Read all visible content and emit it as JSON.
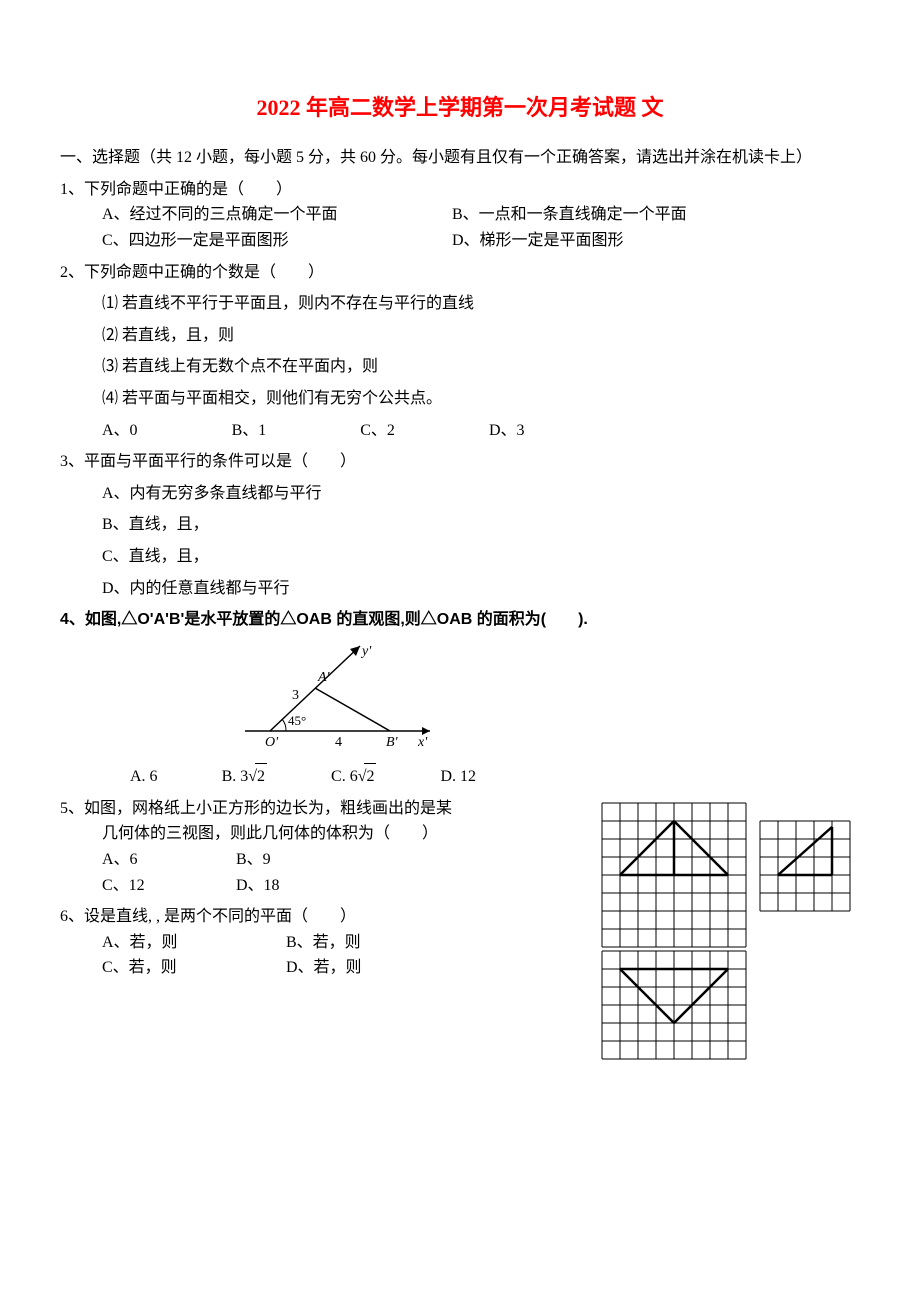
{
  "title": "2022 年高二数学上学期第一次月考试题 文",
  "section_header": "一、选择题（共 12 小题，每小题 5 分，共 60 分。每小题有且仅有一个正确答案，请选出并涂在机读卡上）",
  "q1": {
    "stem": "1、下列命题中正确的是（　　）",
    "optA": "A、经过不同的三点确定一个平面",
    "optB": "B、一点和一条直线确定一个平面",
    "optC": "C、四边形一定是平面图形",
    "optD": "D、梯形一定是平面图形"
  },
  "q2": {
    "stem": "2、下列命题中正确的个数是（　　）",
    "p1": "⑴ 若直线不平行于平面且，则内不存在与平行的直线",
    "p2": "⑵ 若直线，且，则",
    "p3": "⑶ 若直线上有无数个点不在平面内，则",
    "p4": "⑷ 若平面与平面相交，则他们有无穷个公共点。",
    "optA": "A、0",
    "optB": "B、1",
    "optC": "C、2",
    "optD": "D、3"
  },
  "q3": {
    "stem": "3、平面与平面平行的条件可以是（　　）",
    "optA": "A、内有无穷多条直线都与平行",
    "optB": "B、直线，且，",
    "optC": "C、直线，且，",
    "optD": "D、内的任意直线都与平行"
  },
  "q4": {
    "stem_prefix": "4、",
    "stem_main": "如图,△O'A'B'是水平放置的△OAB 的直观图,则△OAB 的面积为(　　).",
    "diagram": {
      "A_label": "A'",
      "O_label": "O'",
      "B_label": "B'",
      "x_label": "x'",
      "y_label": "y'",
      "angle": "45°",
      "val3": "3",
      "val4": "4"
    },
    "optA": "A. 6",
    "optB_pre": "B. 3",
    "optB_arg": "2",
    "optC_pre": "C. 6",
    "optC_arg": "2",
    "optD": "D. 12"
  },
  "q5": {
    "stem1": "5、如图，网格纸上小正方形的边长为，粗线画出的是某",
    "stem2": "几何体的三视图，则此几何体的体积为（　　）",
    "optA": "A、6",
    "optB": "B、9",
    "optC": "C、12",
    "optD": "D、18",
    "grid": {
      "cell": 18,
      "cols1": 8,
      "rows1": 8,
      "cols2": 5,
      "rows2": 5,
      "cols3": 8,
      "rows3": 6,
      "stroke": "#000000",
      "thin": 1,
      "thick": 2.5
    }
  },
  "q6": {
    "stem": "6、设是直线, ,  是两个不同的平面（　　）",
    "optA": "A、若，则",
    "optB": "B、若，则",
    "optC": "C、若，则",
    "optD": "D、若，则"
  }
}
